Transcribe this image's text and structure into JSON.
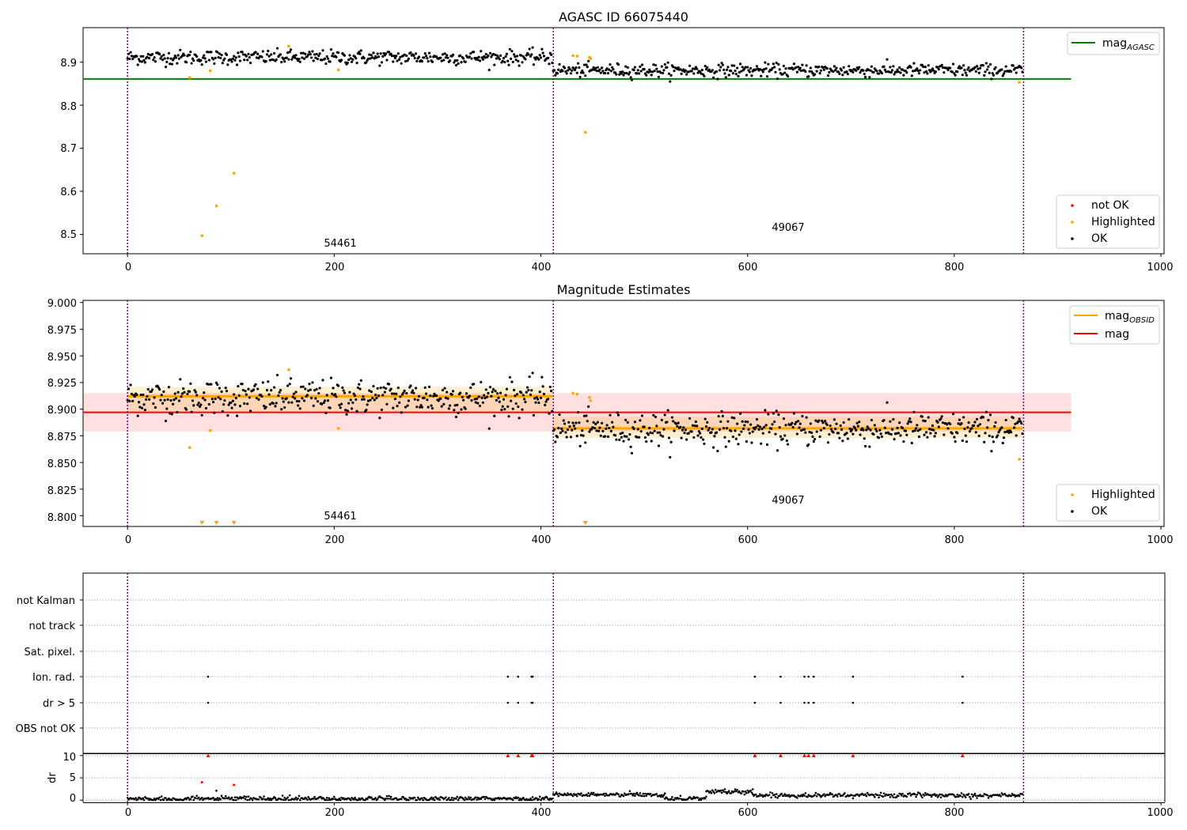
{
  "figure": {
    "panels": [
      {
        "id": "agasc",
        "title": "AGASC ID 66075440",
        "xticks": [
          "0",
          "200",
          "400",
          "600",
          "800",
          "1000"
        ],
        "yticks": [
          "8.5",
          "8.6",
          "8.7",
          "8.8",
          "8.9"
        ],
        "annotations": [
          "54461",
          "49067"
        ],
        "legend_line": [
          {
            "label": "mag",
            "sub": "AGASC",
            "color": "#008000"
          }
        ],
        "legend_points": [
          {
            "label": "not OK",
            "color": "#ff0000"
          },
          {
            "label": "Highlighted",
            "color": "#ffa500"
          },
          {
            "label": "OK",
            "color": "#000000"
          }
        ]
      },
      {
        "id": "estimates",
        "title": "Magnitude Estimates",
        "xticks": [
          "0",
          "200",
          "400",
          "600",
          "800",
          "1000"
        ],
        "yticks": [
          "8.800",
          "8.825",
          "8.850",
          "8.875",
          "8.900",
          "8.925",
          "8.950",
          "8.975",
          "9.000"
        ],
        "annotations": [
          "54461",
          "49067"
        ],
        "legend_line": [
          {
            "label": "mag",
            "sub": "OBSID",
            "color": "#ffa500"
          },
          {
            "label": "mag",
            "sub": "",
            "color": "#ff0000"
          }
        ],
        "legend_points": [
          {
            "label": "Highlighted",
            "color": "#ffa500"
          },
          {
            "label": "OK",
            "color": "#000000"
          }
        ]
      },
      {
        "id": "flags",
        "rows": [
          "not Kalman",
          "not track",
          "Sat. pixel.",
          "Ion. rad.",
          "dr > 5",
          "OBS not OK"
        ],
        "dr_ylabel": "dr",
        "dr_yticks": [
          "0",
          "5",
          "10"
        ],
        "xticks": [
          "0",
          "200",
          "400",
          "600",
          "800",
          "1000"
        ]
      }
    ]
  },
  "chart_data": [
    {
      "type": "scatter",
      "title": "AGASC ID 66075440",
      "xlim": [
        -43,
        1003
      ],
      "ylim": [
        8.455,
        8.98
      ],
      "observation_boundaries": [
        0,
        412,
        867
      ],
      "observation_labels": [
        {
          "x": 205,
          "y": 8.47,
          "text": "54461"
        },
        {
          "x": 625,
          "y": 8.505,
          "text": "49067"
        }
      ],
      "lines": [
        {
          "name": "mag_AGASC",
          "y": 8.861,
          "x": [
            -43,
            913
          ],
          "color": "#008000"
        }
      ],
      "ok_segments": [
        {
          "x": [
            0,
            411
          ],
          "mean": 8.911,
          "jitter": 0.012
        },
        {
          "x": [
            412,
            866
          ],
          "mean": 8.881,
          "jitter": 0.011
        }
      ],
      "highlighted": [
        {
          "x": 60,
          "y": 8.864
        },
        {
          "x": 72,
          "y": 8.497
        },
        {
          "x": 80,
          "y": 8.88
        },
        {
          "x": 86,
          "y": 8.566
        },
        {
          "x": 103,
          "y": 8.642
        },
        {
          "x": 156,
          "y": 8.937
        },
        {
          "x": 204,
          "y": 8.882
        },
        {
          "x": 431,
          "y": 8.915
        },
        {
          "x": 435,
          "y": 8.914
        },
        {
          "x": 443,
          "y": 8.737
        },
        {
          "x": 447,
          "y": 8.911
        },
        {
          "x": 448,
          "y": 8.908
        },
        {
          "x": 863,
          "y": 8.853
        }
      ],
      "not_ok": []
    },
    {
      "type": "scatter",
      "title": "Magnitude Estimates",
      "xlim": [
        -43,
        1003
      ],
      "ylim": [
        8.79,
        9.002
      ],
      "observation_boundaries": [
        0,
        412,
        867
      ],
      "observation_labels": [
        {
          "x": 205,
          "y": 8.798,
          "text": "54461"
        },
        {
          "x": 625,
          "y": 8.814,
          "text": "49067"
        }
      ],
      "mag_line": {
        "y": 8.897,
        "band": [
          8.879,
          8.915
        ],
        "x": [
          -43,
          913
        ],
        "color": "#ff0000"
      },
      "mag_obsid": [
        {
          "x": [
            0,
            411
          ],
          "y": 8.912,
          "band": [
            8.898,
            8.921
          ]
        },
        {
          "x": [
            412,
            866
          ],
          "y": 8.882,
          "band": [
            8.873,
            8.893
          ]
        }
      ],
      "ok_segments": [
        {
          "x": [
            0,
            411
          ],
          "mean": 8.911,
          "jitter": 0.012
        },
        {
          "x": [
            412,
            866
          ],
          "mean": 8.881,
          "jitter": 0.011
        }
      ],
      "highlighted": [
        {
          "x": 60,
          "y": 8.864
        },
        {
          "x": 80,
          "y": 8.88
        },
        {
          "x": 156,
          "y": 8.937
        },
        {
          "x": 204,
          "y": 8.882
        },
        {
          "x": 431,
          "y": 8.915
        },
        {
          "x": 435,
          "y": 8.914
        },
        {
          "x": 447,
          "y": 8.911
        },
        {
          "x": 448,
          "y": 8.908
        },
        {
          "x": 863,
          "y": 8.853
        }
      ],
      "off_scale_low": [
        72,
        86,
        103,
        443
      ]
    },
    {
      "type": "scatter",
      "title": "",
      "xlim": [
        -43,
        1003
      ],
      "flag_points": {
        "Ion. rad.": [
          78,
          368,
          378,
          391,
          392,
          607,
          632,
          655,
          659,
          664,
          702,
          808
        ],
        "dr > 5": [
          78,
          368,
          378,
          391,
          392,
          607,
          632,
          655,
          659,
          664,
          702,
          808
        ]
      },
      "dr": {
        "ylim": [
          -0.5,
          10.5
        ],
        "red_markers_at_10": [
          78,
          368,
          378,
          391,
          392,
          607,
          632,
          655,
          659,
          664,
          702,
          808
        ],
        "red_points": [
          {
            "x": 72,
            "y": 4.0
          },
          {
            "x": 103,
            "y": 3.4
          }
        ],
        "black_extra": [
          {
            "x": 86,
            "y": 2.1
          }
        ],
        "segments": [
          {
            "x": [
              0,
              411
            ],
            "base": 0.3
          },
          {
            "x": [
              412,
              520
            ],
            "base": 1.2
          },
          {
            "x": [
              520,
              560
            ],
            "base": 0.4
          },
          {
            "x": [
              560,
              605
            ],
            "base": 1.9
          },
          {
            "x": [
              605,
              866
            ],
            "base": 1.1
          }
        ]
      }
    }
  ]
}
